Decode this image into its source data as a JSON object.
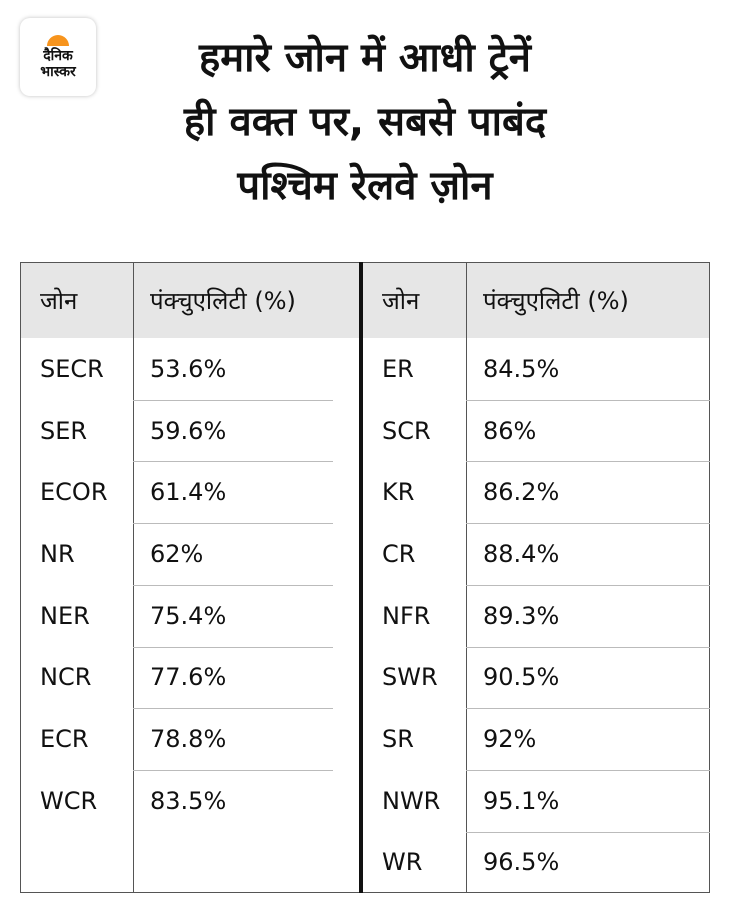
{
  "logo": {
    "lines": [
      "दैनिक",
      "भास्कर"
    ]
  },
  "header": {
    "title_lines": [
      "हमारे जोन में आधी ट्रेनें",
      "ही वक्त पर, सबसे पाबंद",
      "पश्चिम रेलवे ज़ोन"
    ]
  },
  "tables": [
    {
      "columns": [
        "जोन",
        "पंक्चुएलिटी (%)"
      ],
      "rows": [
        [
          "SECR",
          "53.6%"
        ],
        [
          "SER",
          "59.6%"
        ],
        [
          "ECOR",
          "61.4%"
        ],
        [
          "NR",
          "62%"
        ],
        [
          "NER",
          "75.4%"
        ],
        [
          "NCR",
          "77.6%"
        ],
        [
          "ECR",
          "78.8%"
        ],
        [
          "WCR",
          "83.5%"
        ]
      ]
    },
    {
      "columns": [
        "जोन",
        "पंक्चुएलिटी (%)"
      ],
      "rows": [
        [
          "ER",
          "84.5%"
        ],
        [
          "SCR",
          "86%"
        ],
        [
          "KR",
          "86.2%"
        ],
        [
          "CR",
          "88.4%"
        ],
        [
          "NFR",
          "89.3%"
        ],
        [
          "SWR",
          "90.5%"
        ],
        [
          "SR",
          "92%"
        ],
        [
          "NWR",
          "95.1%"
        ],
        [
          "WR",
          "96.5%"
        ]
      ]
    }
  ]
}
